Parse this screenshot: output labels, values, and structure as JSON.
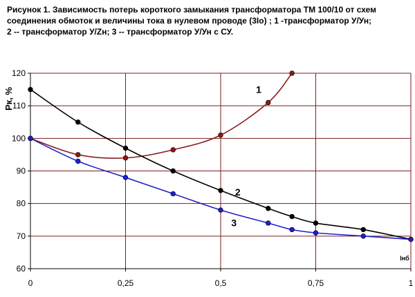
{
  "caption": {
    "lines": [
      "Рисунок 1. Зависимость потерь короткого замыкания трансформатора ТМ 100/10 от схем",
      "соединения обмоток и величины тока в нулевом проводе (3Io) ; 1 -трансформатор У/Ун;",
      "2 -- трансформатор У/Zн; 3 -- трансформатор У/Ун с СУ."
    ]
  },
  "chart_data": {
    "type": "line",
    "title": "",
    "ylabel": "Рк, %",
    "xlabel": "Iнб",
    "xlim": [
      0,
      1
    ],
    "ylim": [
      60,
      120
    ],
    "x_ticks": [
      0,
      0.25,
      0.5,
      0.75,
      1
    ],
    "x_tick_labels": [
      "0",
      "0,25",
      "0,5",
      "0,75",
      "1"
    ],
    "y_ticks": [
      60,
      70,
      80,
      90,
      100,
      110,
      120
    ],
    "y_tick_labels": [
      "60",
      "70",
      "80",
      "90",
      "100",
      "110",
      "120"
    ],
    "grid": true,
    "series": [
      {
        "name": "1",
        "color": "#8B1A1A",
        "x": [
          0,
          0.125,
          0.25,
          0.375,
          0.5,
          0.625,
          0.6875
        ],
        "y": [
          100,
          95,
          94,
          96.5,
          101,
          111,
          120
        ]
      },
      {
        "name": "2",
        "color": "#000000",
        "x": [
          0,
          0.125,
          0.25,
          0.375,
          0.5,
          0.625,
          0.6875,
          0.75,
          0.875,
          1
        ],
        "y": [
          115,
          105,
          97,
          90,
          84,
          78.5,
          76,
          74,
          72,
          69
        ]
      },
      {
        "name": "3",
        "color": "#1F1FCC",
        "x": [
          0,
          0.125,
          0.25,
          0.375,
          0.5,
          0.625,
          0.6875,
          0.75,
          0.875,
          1
        ],
        "y": [
          100,
          93,
          88,
          83,
          78,
          74,
          72,
          71,
          70,
          69
        ]
      }
    ],
    "series_label_anchors": [
      {
        "text": "1",
        "x": 0.6,
        "y": 114
      },
      {
        "text": "2",
        "x": 0.545,
        "y": 82.5
      },
      {
        "text": "3",
        "x": 0.535,
        "y": 73
      }
    ],
    "colors": {
      "grid": "#7A1E1E",
      "axis": "#000000",
      "marker_outline": "#000000"
    }
  }
}
